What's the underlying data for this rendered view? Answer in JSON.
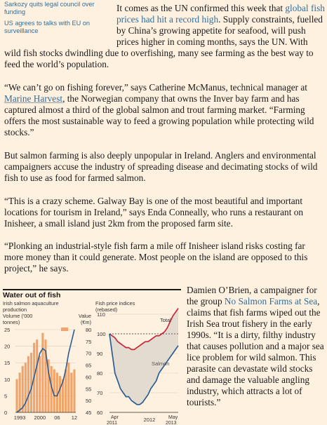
{
  "sidebar": {
    "links": [
      "Sarkozy quits legal council over funding",
      "US agrees to talks with EU on surveillance"
    ]
  },
  "article": {
    "p1_a": "It comes as the UN confirmed this week that ",
    "p1_link": "global fish prices had hit a record high",
    "p1_b": ". Supply constraints, fuelled by China’s growing appetite for seafood, will push prices higher in coming months, says the UN. With",
    "p1_c": "wild fish stocks dwindling due to overfishing, many see farming as the best way to feed the world’s population.",
    "p2_a": "“We can’t go on fishing forever,” says Catherine McManus, technical manager at ",
    "p2_link": "Marine Harvest",
    "p2_b": ", the Norwegian company that owns the Inver bay farm and has captured almost a third of the global salmon and trout farming market. “Farming offers the most sustainable way to feed a growing population while protecting wild stocks.”",
    "p3": "But salmon farming is also deeply unpopular in Ireland. Anglers and environmental campaigners accuse the industry of spreading disease and decimating stocks of wild fish to use as food for farmed salmon.",
    "p4": "“This is a crazy scheme. Galway Bay is one of the most beautiful and important locations for tourism in Ireland,” says Enda Conneally, who runs a restaurant on Inisheer, a small island just 2km from the proposed farm site.",
    "p5": "“Plonking an industrial-style fish farm a mile off Inisheer island risks costing far more money than it could generate. Most people on the island are opposed to this project,” he says.",
    "p6_a": "Damien O’Brien, a campaigner for the group ",
    "p6_link": "No Salmon Farms at Sea",
    "p6_b": ", claims that fish farms wiped out the Irish Sea trout fishery in the early 1990s. “It is a dirty, filthy industry that causes pollution and a major sea lice problem for wild salmon. This parasite can devastate wild stocks and damage the valuable angling industry, which attracts a lot of tourists.”"
  },
  "chart_data": [
    {
      "type": "bar",
      "title": "Water out of fish",
      "subtitle": "Irish salmon aquaculture production",
      "left_axis_label": "Volume ('000 tonnes)",
      "right_axis_label": "Value (€m)",
      "x_tick_labels": [
        "1993",
        "2000",
        "06",
        "12"
      ],
      "years": [
        1992,
        1993,
        1994,
        1995,
        1996,
        1997,
        1998,
        1999,
        2000,
        2001,
        2002,
        2003,
        2004,
        2005,
        2006,
        2007,
        2008,
        2009,
        2010,
        2011,
        2012
      ],
      "volume_values": [
        10,
        12,
        14,
        15,
        17,
        18,
        21,
        22,
        17,
        24,
        22,
        16,
        14,
        13,
        12,
        11,
        10,
        13,
        15,
        12,
        13
      ],
      "value_values": [
        45,
        46,
        47,
        49,
        52,
        55,
        60,
        65,
        70,
        72,
        71,
        62,
        56,
        52,
        52,
        55,
        58,
        63,
        70,
        75,
        80
      ],
      "left_ylim": [
        0,
        25
      ],
      "left_ticks": [
        "0",
        "5",
        "10",
        "15",
        "20",
        "25"
      ],
      "right_ylim": [
        45,
        80
      ],
      "right_ticks": [
        "45",
        "50",
        "55",
        "60",
        "65",
        "70",
        "75",
        "80"
      ],
      "legend": [
        "Volume",
        "Value"
      ],
      "colors": {
        "bars": "#f0a46a",
        "line": "#2b5d93"
      }
    },
    {
      "type": "line",
      "subtitle": "Fish price indices (rebased)",
      "ylim": [
        60,
        110
      ],
      "y_ticks": [
        "60",
        "70",
        "80",
        "90",
        "100",
        "110"
      ],
      "x_tick_labels": [
        "Apr 2011",
        "2012",
        "May 2013"
      ],
      "series": [
        {
          "name": "Total",
          "values": [
            100,
            99,
            98,
            96,
            95,
            94,
            93,
            93,
            92,
            92,
            93,
            94,
            95,
            96,
            96,
            97,
            98,
            99,
            99,
            100,
            101,
            103,
            106,
            109,
            111,
            113
          ]
        },
        {
          "name": "Salmon",
          "values": [
            100,
            90,
            80,
            76,
            72,
            70,
            68,
            68,
            66,
            65,
            64,
            64,
            65,
            67,
            69,
            72,
            74,
            76,
            80,
            82,
            84,
            86,
            88,
            90,
            92,
            94
          ]
        }
      ],
      "colors": {
        "Total": "#c9253a",
        "Salmon": "#2b5d93",
        "fill": "#e3dbd0"
      }
    }
  ]
}
